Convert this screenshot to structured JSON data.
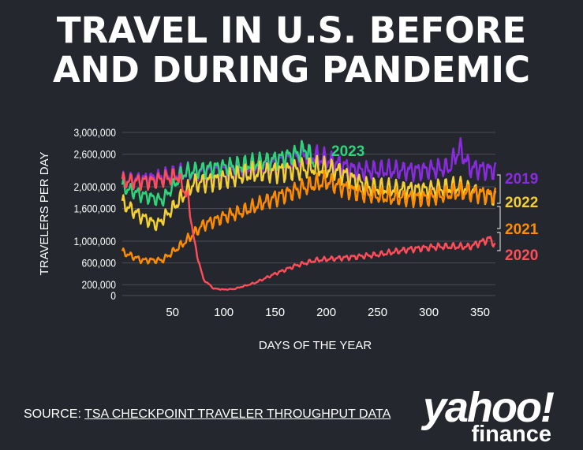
{
  "header": {
    "title_line1": "TRAVEL IN U.S. BEFORE",
    "title_line2": "AND DURING PANDEMIC"
  },
  "source": {
    "prefix": "SOURCE: ",
    "link_text": "TSA CHECKPOINT TRAVELER THROUGHPUT DATA"
  },
  "logo": {
    "brand": "yahoo!",
    "sub": "finance"
  },
  "chart_data": {
    "type": "line",
    "xlabel": "DAYS OF THE YEAR",
    "ylabel": "TRAVELERS PER DAY",
    "xlim": [
      1,
      365
    ],
    "ylim": [
      0,
      3000000
    ],
    "x_ticks": [
      50,
      100,
      150,
      200,
      250,
      300,
      350
    ],
    "y_ticks": [
      0,
      200000,
      600000,
      1000000,
      1600000,
      2000000,
      2600000,
      3000000
    ],
    "y_tick_labels": [
      "0",
      "200,000",
      "600,000",
      "1,000,000",
      "1,600,000",
      "2,000,000",
      "2,600,000",
      "3,000,000"
    ],
    "grid": true,
    "legend": "right",
    "series": [
      {
        "name": "2019",
        "color": "#8a2be2",
        "x": [
          1,
          30,
          60,
          90,
          120,
          150,
          180,
          200,
          230,
          260,
          290,
          320,
          330,
          340,
          365
        ],
        "values": [
          2100000,
          2150000,
          2250000,
          2300000,
          2350000,
          2450000,
          2600000,
          2500000,
          2300000,
          2300000,
          2300000,
          2350000,
          2700000,
          2350000,
          2300000
        ]
      },
      {
        "name": "2023",
        "color": "#2ed47a",
        "x": [
          1,
          20,
          40,
          60,
          90,
          120,
          150,
          170,
          180,
          188
        ],
        "values": [
          2000000,
          1850000,
          1750000,
          2250000,
          2350000,
          2400000,
          2500000,
          2600000,
          2700000,
          2450000
        ]
      },
      {
        "name": "2022",
        "color": "#f5d033",
        "x": [
          1,
          20,
          35,
          50,
          70,
          100,
          130,
          160,
          190,
          210,
          240,
          270,
          300,
          330,
          365
        ],
        "values": [
          1700000,
          1450000,
          1300000,
          1600000,
          2050000,
          2150000,
          2250000,
          2300000,
          2350000,
          2300000,
          2000000,
          1950000,
          1950000,
          2000000,
          1800000
        ]
      },
      {
        "name": "2021",
        "color": "#ff8c00",
        "x": [
          1,
          20,
          40,
          60,
          80,
          100,
          120,
          150,
          180,
          200,
          230,
          260,
          300,
          330,
          365
        ],
        "values": [
          800000,
          650000,
          650000,
          950000,
          1300000,
          1450000,
          1550000,
          1800000,
          2000000,
          2100000,
          1900000,
          1800000,
          1800000,
          1900000,
          1850000
        ]
      },
      {
        "name": "2020",
        "color": "#ff4d5a",
        "x": [
          1,
          30,
          55,
          65,
          72,
          80,
          90,
          100,
          110,
          130,
          150,
          170,
          190,
          220,
          250,
          280,
          310,
          340,
          360,
          365
        ],
        "values": [
          2100000,
          2100000,
          2200000,
          1800000,
          900000,
          300000,
          130000,
          110000,
          120000,
          230000,
          400000,
          550000,
          650000,
          700000,
          750000,
          850000,
          900000,
          900000,
          1050000,
          900000
        ]
      }
    ],
    "series_labels": [
      "2023",
      "2019",
      "2022",
      "2021",
      "2020"
    ]
  }
}
